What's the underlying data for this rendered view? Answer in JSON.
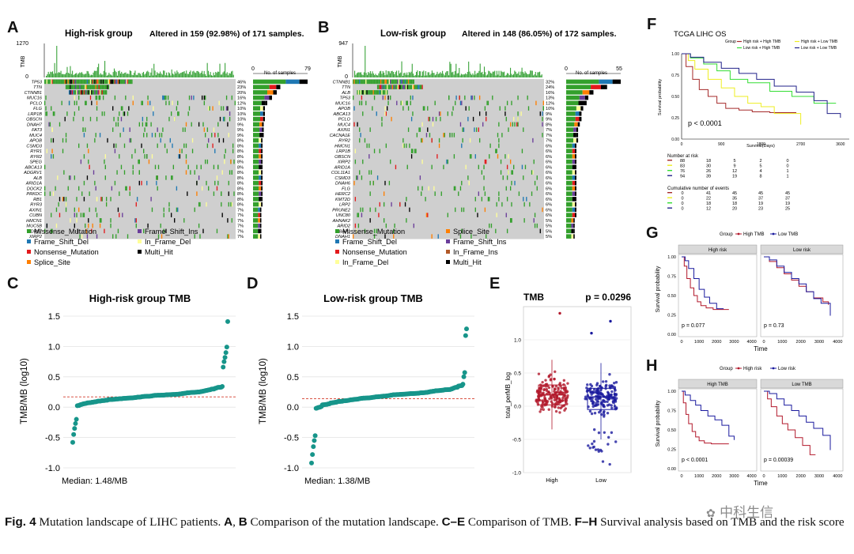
{
  "panel_labels": {
    "A": "A",
    "B": "B",
    "C": "C",
    "D": "D",
    "E": "E",
    "F": "F",
    "G": "G",
    "H": "H"
  },
  "panelA": {
    "title": "High-risk group",
    "altered": "Altered in 159 (92.98%) of 171 samples.",
    "tmb_label": "TMB",
    "tmb_max": "1270",
    "tmb_min": "0",
    "bar_axis_min": "0",
    "bar_axis_max": "79",
    "bar_axis_title": "No. of samples",
    "genes": [
      {
        "g": "TP53",
        "p": "46%",
        "f": 0.46
      },
      {
        "g": "TTN",
        "p": "23%",
        "f": 0.23
      },
      {
        "g": "CTNNB1",
        "p": "20%",
        "f": 0.2
      },
      {
        "g": "MUC16",
        "p": "16%",
        "f": 0.16
      },
      {
        "g": "PCLO",
        "p": "12%",
        "f": 0.12
      },
      {
        "g": "FLG",
        "p": "10%",
        "f": 0.1
      },
      {
        "g": "LRP1B",
        "p": "10%",
        "f": 0.1
      },
      {
        "g": "OBSCN",
        "p": "10%",
        "f": 0.1
      },
      {
        "g": "DNAH7",
        "p": "9%",
        "f": 0.09
      },
      {
        "g": "FAT3",
        "p": "9%",
        "f": 0.09
      },
      {
        "g": "MUC4",
        "p": "9%",
        "f": 0.09
      },
      {
        "g": "APOB",
        "p": "8%",
        "f": 0.08
      },
      {
        "g": "CSMD3",
        "p": "8%",
        "f": 0.08
      },
      {
        "g": "RYR1",
        "p": "8%",
        "f": 0.08
      },
      {
        "g": "RYR2",
        "p": "8%",
        "f": 0.08
      },
      {
        "g": "SPEG",
        "p": "8%",
        "f": 0.08
      },
      {
        "g": "ABCA13",
        "p": "8%",
        "f": 0.08
      },
      {
        "g": "ADGRV1",
        "p": "8%",
        "f": 0.08
      },
      {
        "g": "ALB",
        "p": "8%",
        "f": 0.08
      },
      {
        "g": "ARID1A",
        "p": "8%",
        "f": 0.08
      },
      {
        "g": "DOCK2",
        "p": "8%",
        "f": 0.08
      },
      {
        "g": "PRKDC",
        "p": "8%",
        "f": 0.08
      },
      {
        "g": "RB1",
        "p": "8%",
        "f": 0.08
      },
      {
        "g": "RYR3",
        "p": "8%",
        "f": 0.08
      },
      {
        "g": "AXIN1",
        "p": "7%",
        "f": 0.07
      },
      {
        "g": "CUBN",
        "p": "7%",
        "f": 0.07
      },
      {
        "g": "HMCN1",
        "p": "7%",
        "f": 0.07
      },
      {
        "g": "MUC5B",
        "p": "7%",
        "f": 0.07
      },
      {
        "g": "WDR87",
        "p": "7%",
        "f": 0.07
      },
      {
        "g": "XIRP2",
        "p": "7%",
        "f": 0.07
      }
    ],
    "legend": [
      {
        "label": "Missense_Mutation",
        "color": "#33a02c"
      },
      {
        "label": "Frame_Shift_Ins",
        "color": "#6a3d9a"
      },
      {
        "label": "Frame_Shift_Del",
        "color": "#1f78b4"
      },
      {
        "label": "In_Frame_Del",
        "color": "#ffff99"
      },
      {
        "label": "Nonsense_Mutation",
        "color": "#e31a1c"
      },
      {
        "label": "Multi_Hit",
        "color": "#000000"
      },
      {
        "label": "Splice_Site",
        "color": "#ff7f00"
      }
    ]
  },
  "panelB": {
    "title": "Low-risk group",
    "altered": "Altered in 148 (86.05%) of 172 samples.",
    "tmb_label": "TMB",
    "tmb_max": "947",
    "tmb_min": "0",
    "bar_axis_min": "0",
    "bar_axis_max": "55",
    "bar_axis_title": "No. of samples",
    "genes": [
      {
        "g": "CTNNB1",
        "p": "32%",
        "f": 0.32
      },
      {
        "g": "TTN",
        "p": "24%",
        "f": 0.24
      },
      {
        "g": "ALB",
        "p": "16%",
        "f": 0.16
      },
      {
        "g": "TP53",
        "p": "13%",
        "f": 0.13
      },
      {
        "g": "MUC16",
        "p": "12%",
        "f": 0.12
      },
      {
        "g": "APOB",
        "p": "10%",
        "f": 0.1
      },
      {
        "g": "ABCA13",
        "p": "9%",
        "f": 0.09
      },
      {
        "g": "PCLO",
        "p": "9%",
        "f": 0.09
      },
      {
        "g": "MUC4",
        "p": "8%",
        "f": 0.08
      },
      {
        "g": "AXIN1",
        "p": "7%",
        "f": 0.07
      },
      {
        "g": "CACNA1E",
        "p": "7%",
        "f": 0.07
      },
      {
        "g": "RYR2",
        "p": "7%",
        "f": 0.07
      },
      {
        "g": "HMCN1",
        "p": "6%",
        "f": 0.06
      },
      {
        "g": "LRP1B",
        "p": "6%",
        "f": 0.06
      },
      {
        "g": "OBSCN",
        "p": "6%",
        "f": 0.06
      },
      {
        "g": "XIRP2",
        "p": "6%",
        "f": 0.06
      },
      {
        "g": "ARID1A",
        "p": "6%",
        "f": 0.06
      },
      {
        "g": "COL11A1",
        "p": "6%",
        "f": 0.06
      },
      {
        "g": "CSMD3",
        "p": "6%",
        "f": 0.06
      },
      {
        "g": "DNAH6",
        "p": "6%",
        "f": 0.06
      },
      {
        "g": "FLG",
        "p": "6%",
        "f": 0.06
      },
      {
        "g": "HERC2",
        "p": "6%",
        "f": 0.06
      },
      {
        "g": "KMT2D",
        "p": "6%",
        "f": 0.06
      },
      {
        "g": "LRP2",
        "p": "6%",
        "f": 0.06
      },
      {
        "g": "PRUNE2",
        "p": "6%",
        "f": 0.06
      },
      {
        "g": "UNC80",
        "p": "6%",
        "f": 0.06
      },
      {
        "g": "AHNAK2",
        "p": "5%",
        "f": 0.05
      },
      {
        "g": "ARID2",
        "p": "5%",
        "f": 0.05
      },
      {
        "g": "BAP1",
        "p": "5%",
        "f": 0.05
      },
      {
        "g": "DNAH1",
        "p": "5%",
        "f": 0.05
      }
    ],
    "legend": [
      {
        "label": "Missense_Mutation",
        "color": "#33a02c"
      },
      {
        "label": "Splice_Site",
        "color": "#ff7f00"
      },
      {
        "label": "Frame_Shift_Del",
        "color": "#1f78b4"
      },
      {
        "label": "Frame_Shift_Ins",
        "color": "#6a3d9a"
      },
      {
        "label": "Nonsense_Mutation",
        "color": "#e31a1c"
      },
      {
        "label": "In_Frame_Ins",
        "color": "#b15928"
      },
      {
        "label": "In_Frame_Del",
        "color": "#ffff99"
      },
      {
        "label": "Multi_Hit",
        "color": "#000000"
      }
    ]
  },
  "panelC": {
    "title": "High-risk group TMB",
    "ylabel": "TMB/MB (log10)",
    "median": "Median: 1.48/MB",
    "yticks": [
      "1.5",
      "1.0",
      "0.5",
      "0.0",
      "-0.5",
      "-1.0"
    ]
  },
  "panelD": {
    "title": "Low-risk group TMB",
    "ylabel": "TMB/MB (log10)",
    "median": "Median: 1.38/MB",
    "yticks": [
      "1.5",
      "1.0",
      "0.5",
      "0.0",
      "-0.5",
      "-1.0"
    ]
  },
  "panelE": {
    "title": "TMB",
    "pvalue": "p = 0.0296",
    "ylabel": "total_perMB_log",
    "yticks": [
      "1.0",
      "0.5",
      "0.0",
      "-0.5",
      "-1.0"
    ],
    "groups": [
      "High",
      "Low"
    ],
    "high_color": "#b2182b",
    "low_color": "#1a1a9e"
  },
  "panelF": {
    "title": "TCGA LIHC OS",
    "legend_title": "Group",
    "legend": [
      {
        "label": "High risk + High TMB",
        "color": "#a52a2a"
      },
      {
        "label": "High risk + Low TMB",
        "color": "#eeee22"
      },
      {
        "label": "Low risk + High TMB",
        "color": "#33dd33"
      },
      {
        "label": "Low risk + Low TMB",
        "color": "#22228a"
      }
    ],
    "ylabel": "Survival probability",
    "xlabel": "Survival(Days)",
    "yticks": [
      "1.00",
      "0.75",
      "0.50",
      "0.25",
      "0.00"
    ],
    "xticks": [
      "0",
      "900",
      "1800",
      "2700",
      "3600"
    ],
    "pvalue": "p < 0.0001",
    "risk_title": "Number at risk",
    "risk_rows": [
      [
        "88",
        "18",
        "5",
        "2",
        "0"
      ],
      [
        "83",
        "30",
        "9",
        "5",
        "0"
      ],
      [
        "76",
        "26",
        "12",
        "4",
        "1"
      ],
      [
        "94",
        "39",
        "19",
        "8",
        "1"
      ]
    ],
    "events_title": "Cumulative number of events",
    "events_rows": [
      [
        "0",
        "41",
        "45",
        "45",
        "45"
      ],
      [
        "0",
        "22",
        "35",
        "37",
        "37"
      ],
      [
        "0",
        "18",
        "18",
        "19",
        "19"
      ],
      [
        "0",
        "12",
        "20",
        "23",
        "25"
      ]
    ]
  },
  "panelG": {
    "legend_title": "Group",
    "legend": [
      "High TMB",
      "Low TMB"
    ],
    "strips": [
      "High risk",
      "Low risk"
    ],
    "ylabel": "Survival probability",
    "xlabel": "Time",
    "yticks": [
      "1.00",
      "0.75",
      "0.50",
      "0.25",
      "0.00"
    ],
    "xticks": [
      "0",
      "1000",
      "2000",
      "3000",
      "4000"
    ],
    "pvalues": [
      "p = 0.077",
      "p = 0.73"
    ]
  },
  "panelH": {
    "legend_title": "Group",
    "legend": [
      "High risk",
      "Low risk"
    ],
    "strips": [
      "High TMB",
      "Low TMB"
    ],
    "ylabel": "Survival probability",
    "xlabel": "Time",
    "yticks": [
      "1.00",
      "0.75",
      "0.50",
      "0.25",
      "0.00"
    ],
    "xticks": [
      "0",
      "1000",
      "2000",
      "3000",
      "4000"
    ],
    "pvalues": [
      "p < 0.0001",
      "p = 0.00039"
    ]
  },
  "caption": {
    "fig": "Fig. 4",
    "t1": " Mutation landscape of LIHC patients. ",
    "ab": "A",
    "sep1": ", ",
    "b": "B",
    "t2": " Comparison of the mutation landscape. ",
    "ce": "C–E",
    "t3": " Comparison of TMB. ",
    "fh": "F–H",
    "t4": " Survival analysis based on TMB and the risk score"
  },
  "watermark": "中科生信"
}
